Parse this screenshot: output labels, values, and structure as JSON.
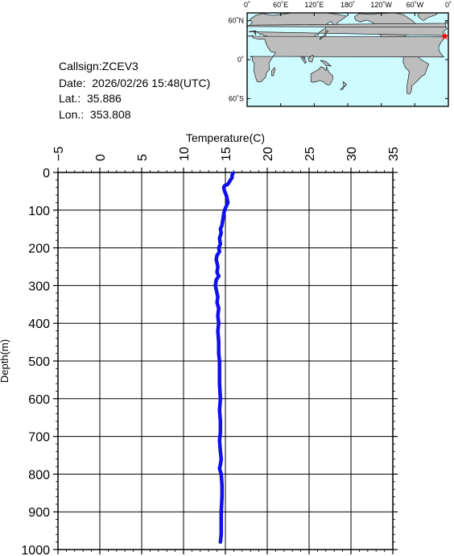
{
  "station": {
    "callsign": "Callsign:ZCEV3",
    "date": "Date:  2026/02/26 15:48(UTC)",
    "lat": "Lat.:  35.886",
    "lon": "Lon.:  353.808"
  },
  "map": {
    "lon_ticks": [
      "0˚",
      "60˚E",
      "120˚E",
      "180˚",
      "120˚W",
      "60˚W",
      "0˚"
    ],
    "lat_ticks": [
      "60˚N",
      "0˚",
      "60˚S"
    ],
    "ocean_color": "#cdfbff",
    "land_color": "#bdbdbd",
    "marker": {
      "lat": 35.886,
      "lon": 353.808,
      "color": "#ff0000"
    }
  },
  "chart_data": {
    "type": "line",
    "xlabel": "Temperature(C)",
    "ylabel": "Depth(m)",
    "xlim": [
      -5,
      35
    ],
    "ylim": [
      0,
      1000
    ],
    "y_inverted": true,
    "x_ticks": [
      -5,
      0,
      5,
      10,
      15,
      20,
      25,
      30,
      35
    ],
    "x_tick_labels": [
      "−5",
      "0",
      "5",
      "10",
      "15",
      "20",
      "25",
      "30",
      "35"
    ],
    "y_ticks": [
      0,
      100,
      200,
      300,
      400,
      500,
      600,
      700,
      800,
      900,
      1000
    ],
    "grid": true,
    "series": [
      {
        "color": "#1010ee",
        "points": [
          [
            15.9,
            2
          ],
          [
            15.8,
            8
          ],
          [
            15.8,
            14
          ],
          [
            15.6,
            20
          ],
          [
            15.4,
            28
          ],
          [
            15.2,
            33
          ],
          [
            14.9,
            35
          ],
          [
            14.8,
            40
          ],
          [
            14.9,
            50
          ],
          [
            15.1,
            60
          ],
          [
            15.2,
            70
          ],
          [
            15.3,
            80
          ],
          [
            15.1,
            90
          ],
          [
            14.9,
            100
          ],
          [
            14.8,
            110
          ],
          [
            14.7,
            125
          ],
          [
            14.6,
            140
          ],
          [
            14.4,
            150
          ],
          [
            14.5,
            160
          ],
          [
            14.3,
            175
          ],
          [
            14.4,
            190
          ],
          [
            14.2,
            200
          ],
          [
            14.3,
            210
          ],
          [
            14.0,
            220
          ],
          [
            13.9,
            230
          ],
          [
            14.0,
            240
          ],
          [
            14.1,
            250
          ],
          [
            14.0,
            265
          ],
          [
            14.2,
            275
          ],
          [
            13.9,
            285
          ],
          [
            13.8,
            300
          ],
          [
            13.9,
            310
          ],
          [
            14.0,
            320
          ],
          [
            14.1,
            330
          ],
          [
            14.0,
            345
          ],
          [
            14.2,
            360
          ],
          [
            14.1,
            380
          ],
          [
            14.2,
            400
          ],
          [
            14.1,
            420
          ],
          [
            14.2,
            450
          ],
          [
            14.2,
            480
          ],
          [
            14.3,
            500
          ],
          [
            14.3,
            530
          ],
          [
            14.3,
            560
          ],
          [
            14.4,
            600
          ],
          [
            14.3,
            630
          ],
          [
            14.4,
            660
          ],
          [
            14.4,
            690
          ],
          [
            14.3,
            710
          ],
          [
            14.4,
            740
          ],
          [
            14.5,
            760
          ],
          [
            14.4,
            775
          ],
          [
            14.3,
            785
          ],
          [
            14.5,
            800
          ],
          [
            14.6,
            830
          ],
          [
            14.6,
            860
          ],
          [
            14.5,
            900
          ],
          [
            14.5,
            930
          ],
          [
            14.5,
            960
          ],
          [
            14.4,
            980
          ]
        ]
      }
    ]
  }
}
